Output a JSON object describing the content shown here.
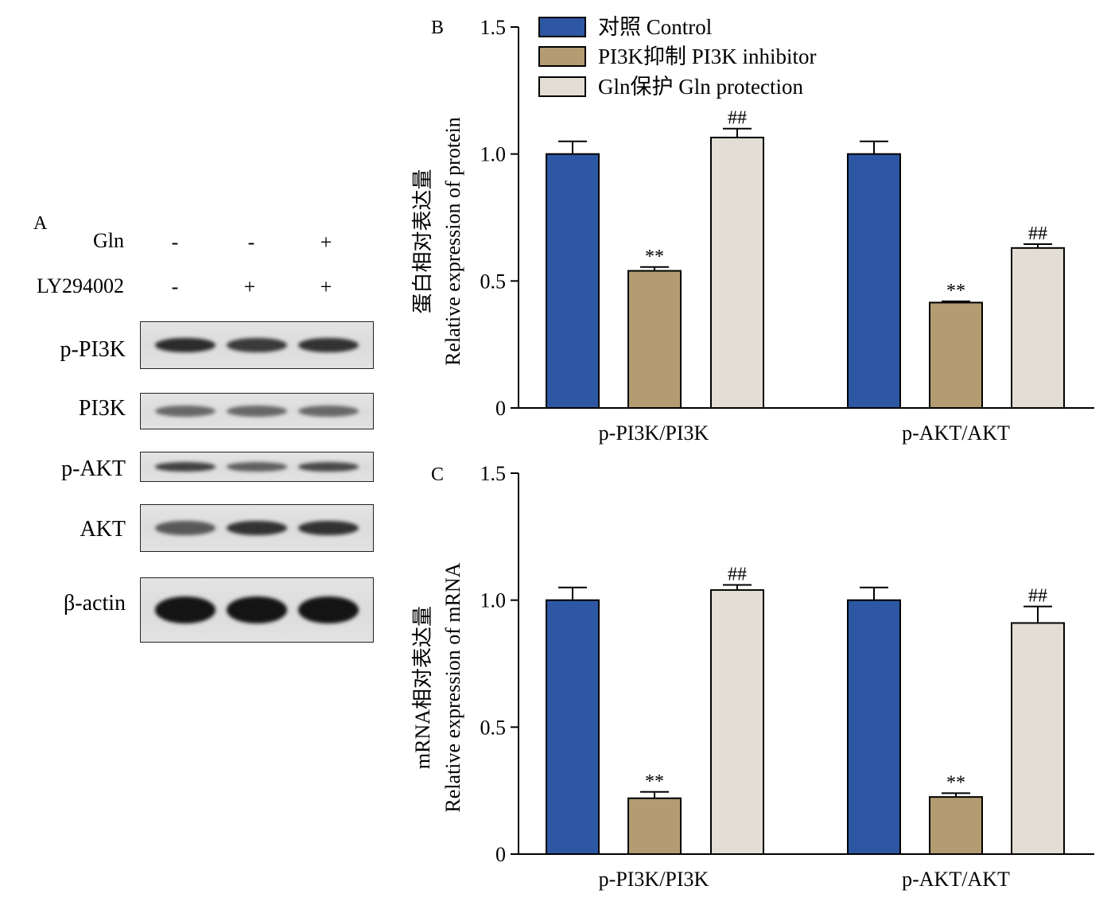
{
  "panel_a": {
    "letter": "A",
    "conditions": [
      {
        "label": "Gln",
        "marks": [
          "-",
          "-",
          "+"
        ]
      },
      {
        "label": "LY294002",
        "marks": [
          "-",
          "+",
          "+"
        ]
      }
    ],
    "blots": [
      {
        "label": "p-PI3K",
        "intensities": [
          0.85,
          0.75,
          0.8
        ]
      },
      {
        "label": "PI3K",
        "intensities": [
          0.45,
          0.45,
          0.45
        ]
      },
      {
        "label": "p-AKT",
        "intensities": [
          0.7,
          0.5,
          0.65
        ]
      },
      {
        "label": "AKT",
        "intensities": [
          0.55,
          0.8,
          0.8
        ]
      },
      {
        "label": "β-actin",
        "intensities": [
          1.0,
          1.0,
          1.0
        ]
      }
    ]
  },
  "legend": [
    {
      "label": "对照 Control",
      "color": "#2d57a3"
    },
    {
      "label": "PI3K抑制 PI3K inhibitor",
      "color": "#b39c72"
    },
    {
      "label": "Gln保护 Gln protection",
      "color": "#e2ded4"
    }
  ],
  "chart_data": [
    {
      "type": "bar",
      "letter": "B",
      "ylabel_cn": "蛋白相对表达量",
      "ylabel_en": "Relative expression of protein",
      "categories": [
        "p-PI3K/PI3K",
        "p-AKT/AKT"
      ],
      "ylim": [
        0,
        1.5
      ],
      "yticks": [
        "0",
        "0.5",
        "1.0",
        "1.5"
      ],
      "series": [
        {
          "name": "对照 Control",
          "values": [
            1.0,
            1.0
          ],
          "errors": [
            0.05,
            0.05
          ],
          "annotations": [
            "",
            ""
          ]
        },
        {
          "name": "PI3K抑制 PI3K inhibitor",
          "values": [
            0.54,
            0.415
          ],
          "errors": [
            0.015,
            0.005
          ],
          "annotations": [
            "**",
            "**"
          ]
        },
        {
          "name": "Gln保护 Gln protection",
          "values": [
            1.065,
            0.63
          ],
          "errors": [
            0.035,
            0.015
          ],
          "annotations": [
            "##",
            "##"
          ]
        }
      ]
    },
    {
      "type": "bar",
      "letter": "C",
      "ylabel_cn": "mRNA相对表达量",
      "ylabel_en": "Relative expression of mRNA",
      "categories": [
        "p-PI3K/PI3K",
        "p-AKT/AKT"
      ],
      "ylim": [
        0,
        1.5
      ],
      "yticks": [
        "0",
        "0.5",
        "1.0",
        "1.5"
      ],
      "series": [
        {
          "name": "对照 Control",
          "values": [
            1.0,
            1.0
          ],
          "errors": [
            0.05,
            0.05
          ],
          "annotations": [
            "",
            ""
          ]
        },
        {
          "name": "PI3K抑制 PI3K inhibitor",
          "values": [
            0.22,
            0.225
          ],
          "errors": [
            0.025,
            0.015
          ],
          "annotations": [
            "**",
            "**"
          ]
        },
        {
          "name": "Gln保护 Gln protection",
          "values": [
            1.04,
            0.91
          ],
          "errors": [
            0.02,
            0.065
          ],
          "annotations": [
            "##",
            "##"
          ]
        }
      ]
    }
  ]
}
